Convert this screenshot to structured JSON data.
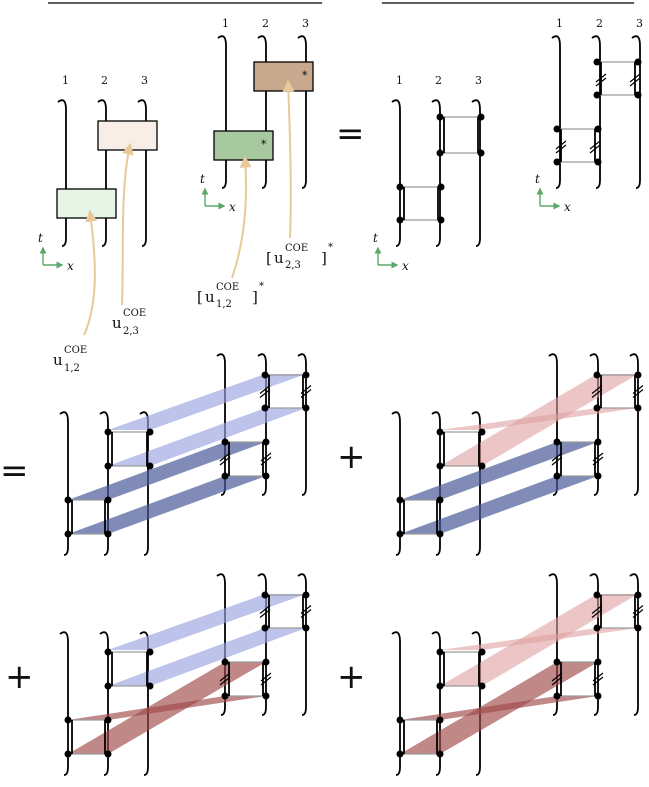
{
  "labels": {
    "wire1": "1",
    "wire2": "2",
    "wire3": "3",
    "t": "t",
    "x": "x",
    "u": "u",
    "coe": "COE",
    "sub12": "1,2",
    "sub23": "2,3",
    "star": "*",
    "lbracket": "[",
    "rbracket": "]"
  },
  "operators": {
    "equals": "=",
    "plus": "+"
  },
  "colors": {
    "gate_u12": "#e6f5e6",
    "gate_u23": "#f7efe7",
    "gate_u12_conj": "#a8c9a0",
    "gate_u23_conj": "#c8a98e",
    "arrow": "#e8c99a",
    "axes": "#5aa86a",
    "band_blue_light": "#9aa3df",
    "band_blue_dark": "#4a5a98",
    "band_red_light": "#e0a0a0",
    "band_red_dark": "#a04848"
  }
}
